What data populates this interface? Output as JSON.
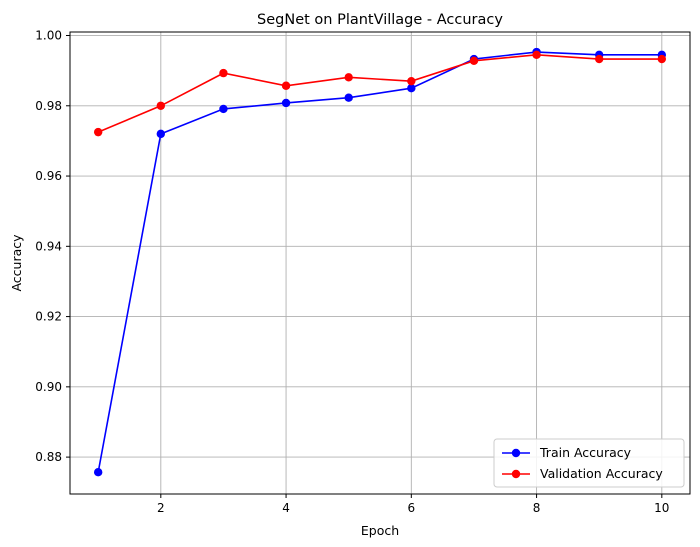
{
  "chart_data": {
    "type": "line",
    "title": "SegNet on PlantVillage - Accuracy",
    "xlabel": "Epoch",
    "ylabel": "Accuracy",
    "x": [
      1,
      2,
      3,
      4,
      5,
      6,
      7,
      8,
      9,
      10
    ],
    "xlim": [
      0.55,
      10.45
    ],
    "ylim": [
      0.8695,
      1.001
    ],
    "xticks": [
      2,
      4,
      6,
      8,
      10
    ],
    "yticks": [
      0.88,
      0.9,
      0.92,
      0.94,
      0.96,
      0.98,
      1.0
    ],
    "xtick_labels": [
      "2",
      "4",
      "6",
      "8",
      "10"
    ],
    "ytick_labels": [
      "0.88",
      "0.90",
      "0.92",
      "0.94",
      "0.96",
      "0.98",
      "1.00"
    ],
    "grid": true,
    "legend_position": "bottom-right",
    "series": [
      {
        "name": "Train Accuracy",
        "color": "#0000ff",
        "marker": "circle",
        "values": [
          0.8757,
          0.972,
          0.9791,
          0.9808,
          0.9823,
          0.985,
          0.9933,
          0.9953,
          0.9945,
          0.9945
        ]
      },
      {
        "name": "Validation Accuracy",
        "color": "#ff0000",
        "marker": "circle",
        "values": [
          0.9725,
          0.98,
          0.9893,
          0.9857,
          0.9881,
          0.987,
          0.9928,
          0.9945,
          0.9933,
          0.9933
        ]
      }
    ]
  }
}
